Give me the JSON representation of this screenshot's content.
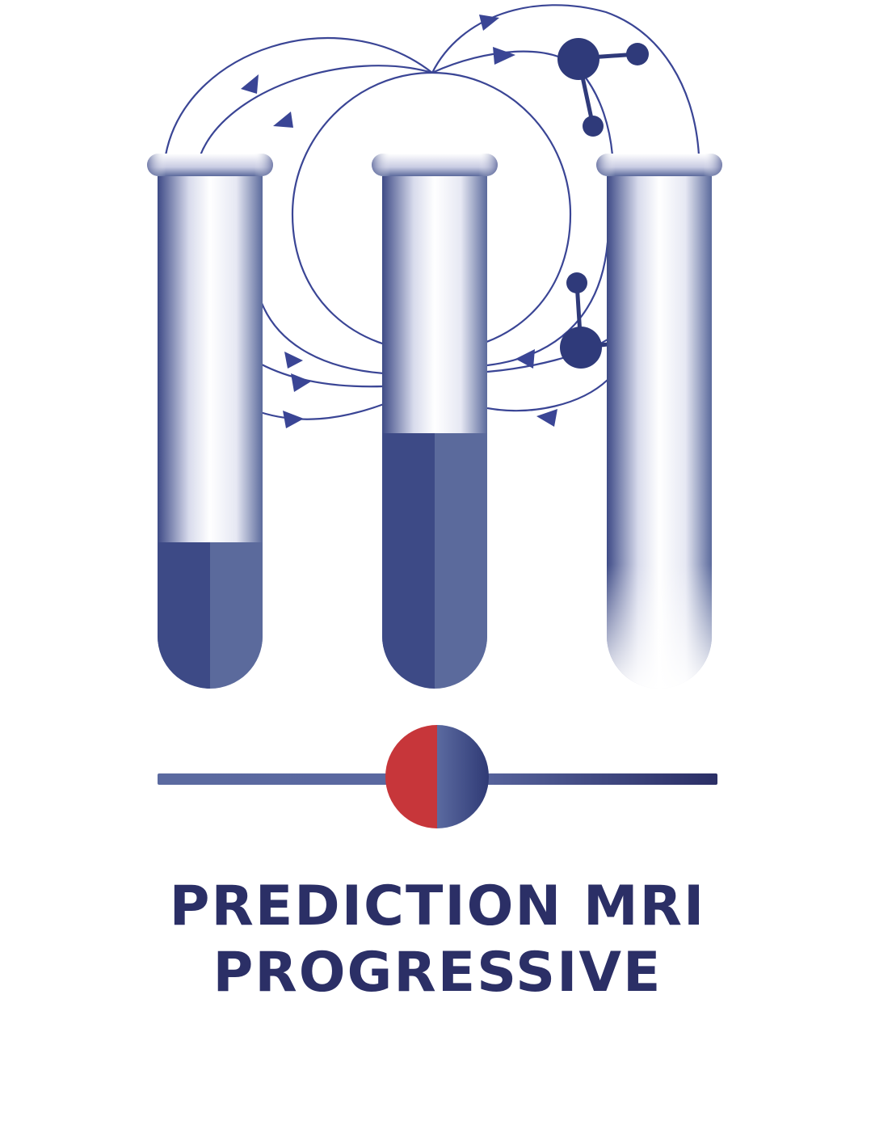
{
  "logo": {
    "title_line_1": "PREDICTION MRI",
    "title_line_2": "PROGRESSIVE"
  },
  "colors": {
    "navy": "#2b2f66",
    "line_blue": "#3a4595",
    "liquid_dark": "#3d4a86",
    "liquid_light": "#5b6a9c",
    "red": "#c7363a",
    "slider_blue": "#5867a0"
  },
  "icons": {
    "tubes": "test-tube-icon",
    "molecules": "molecule-icon",
    "slider_knob": "slider-knob-icon"
  },
  "tubes": [
    {
      "label": "",
      "fill_level": 0.28
    },
    {
      "label": "",
      "fill_level": 0.5
    },
    {
      "label": "",
      "fill_level": 0.0
    }
  ]
}
